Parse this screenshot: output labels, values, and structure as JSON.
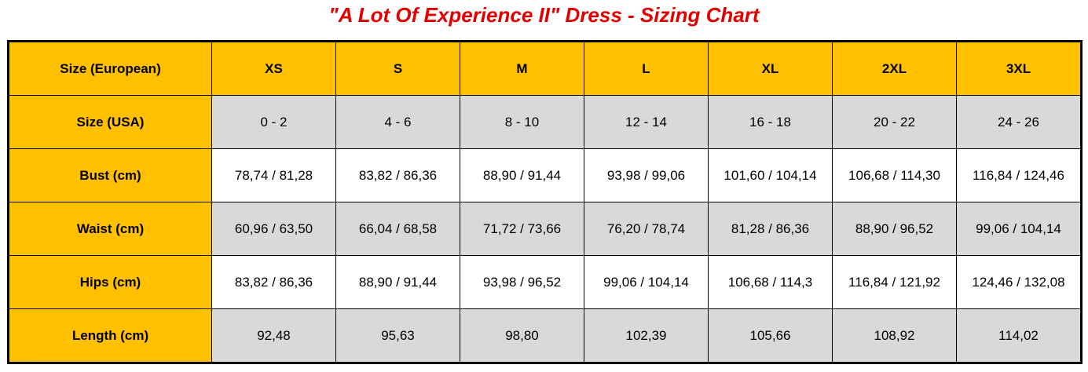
{
  "header": {
    "title": "\"A Lot Of Experience II\" Dress - Sizing Chart"
  },
  "table": {
    "rows": [
      [
        "Size (European)",
        "XS",
        "S",
        "M",
        "L",
        "XL",
        "2XL",
        "3XL"
      ],
      [
        "Size (USA)",
        "0 - 2",
        "4 - 6",
        "8 - 10",
        "12 - 14",
        "16 - 18",
        "20 - 22",
        "24 - 26"
      ],
      [
        "Bust (cm)",
        "78,74 / 81,28",
        "83,82 / 86,36",
        "88,90 / 91,44",
        "93,98 / 99,06",
        "101,60 / 104,14",
        "106,68 / 114,30",
        "116,84 / 124,46"
      ],
      [
        "Waist (cm)",
        "60,96 / 63,50",
        "66,04 / 68,58",
        "71,72 / 73,66",
        "76,20 / 78,74",
        "81,28 / 86,36",
        "88,90 / 96,52",
        "99,06 / 104,14"
      ],
      [
        "Hips (cm)",
        "83,82 / 86,36",
        "88,90 / 91,44",
        "93,98 / 96,52",
        "99,06 / 104,14",
        "106,68 / 114,3",
        "116,84 / 121,92",
        "124,46 / 132,08"
      ],
      [
        "Length (cm)",
        "92,48",
        "95,63",
        "98,80",
        "102,39",
        "105,66",
        "108,92",
        "114,02"
      ]
    ]
  }
}
